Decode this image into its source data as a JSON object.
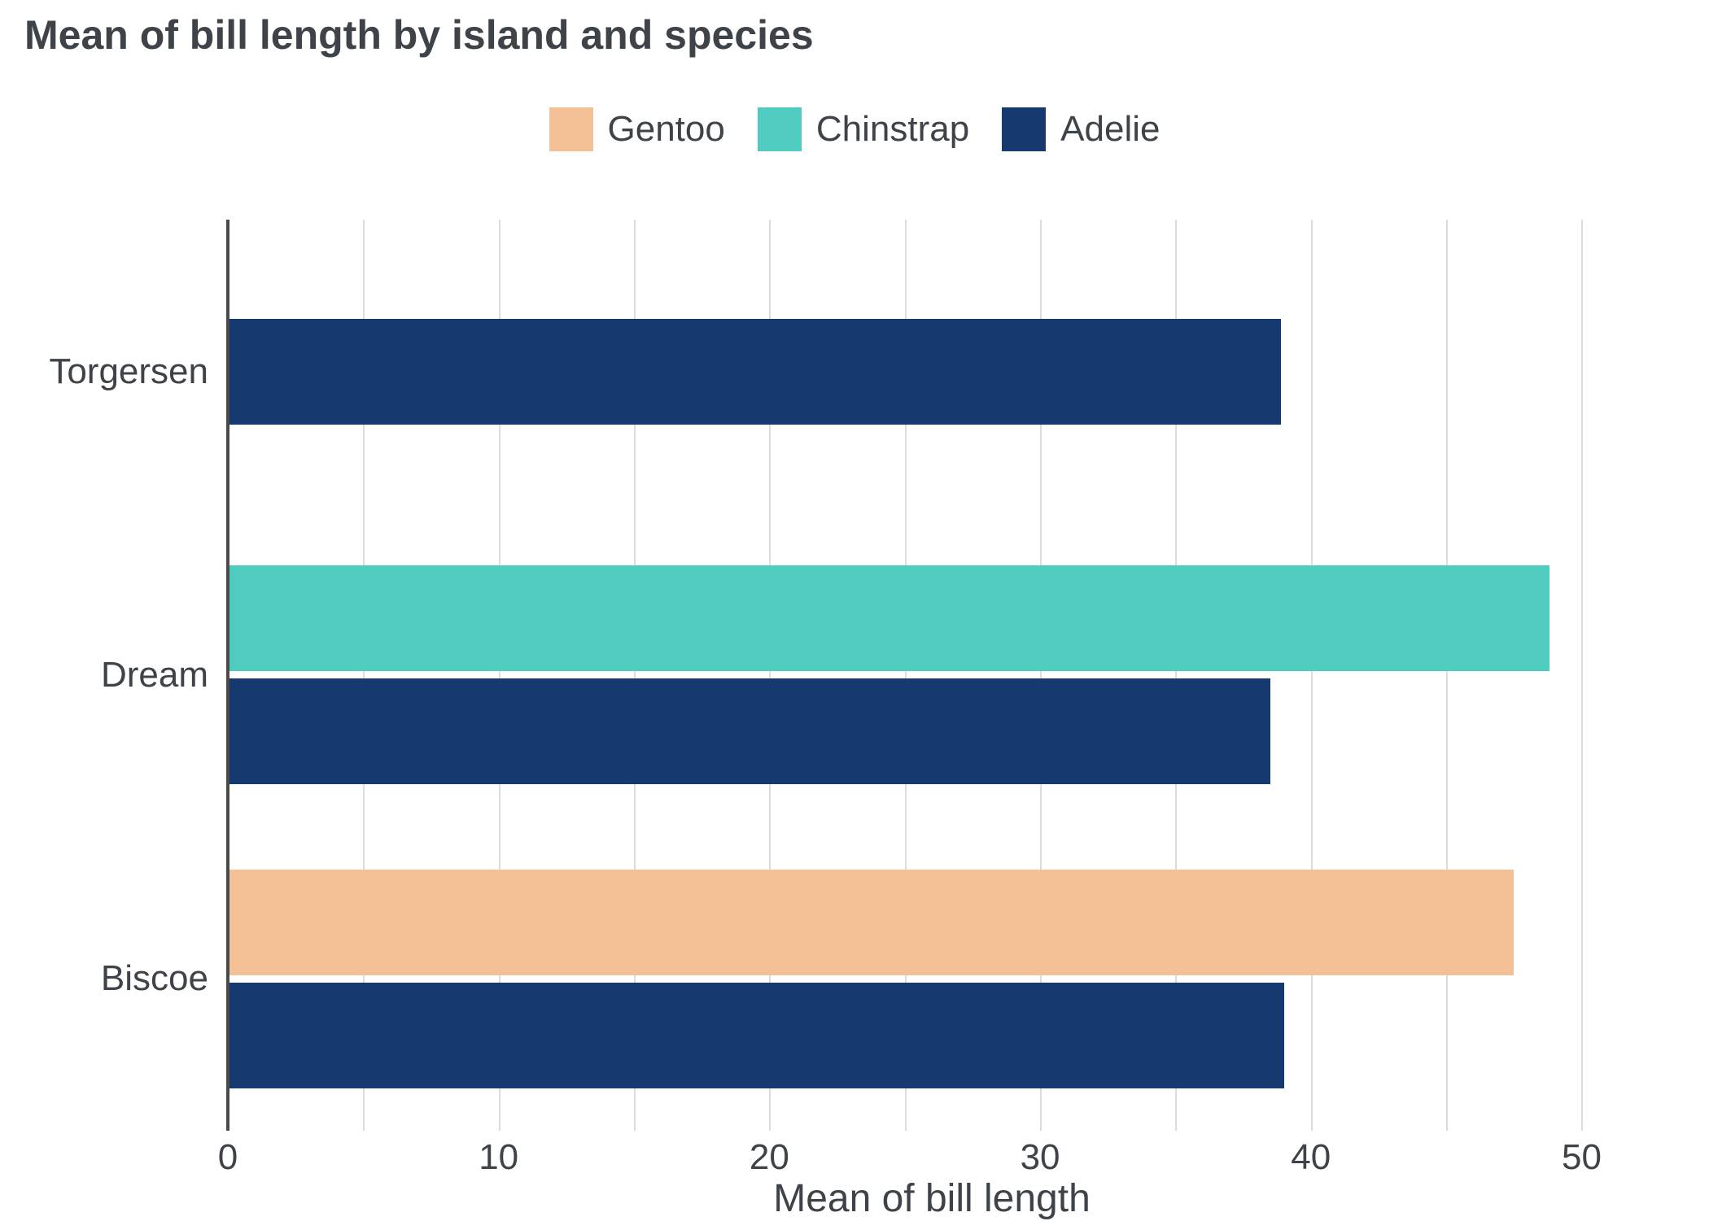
{
  "chart_data": {
    "type": "bar",
    "orientation": "horizontal",
    "title": "Mean of bill length by island and species",
    "xlabel": "Mean of bill length",
    "categories": [
      "Torgersen",
      "Dream",
      "Biscoe"
    ],
    "series": [
      {
        "name": "Gentoo",
        "color": "#f4c095",
        "values": [
          null,
          null,
          47.5
        ]
      },
      {
        "name": "Chinstrap",
        "color": "#4fcbc0",
        "values": [
          null,
          48.8,
          null
        ]
      },
      {
        "name": "Adelie",
        "color": "#16396f",
        "values": [
          38.9,
          38.5,
          39.0
        ]
      }
    ],
    "xlim": [
      0,
      52
    ],
    "xticks": [
      0,
      10,
      20,
      30,
      40,
      50
    ],
    "grid_step": 5,
    "grid": true,
    "legend_position": "top",
    "colors": {
      "axis": "#4a4a4a",
      "gridline": "#dcdcdc",
      "text": "#3d4349"
    }
  }
}
